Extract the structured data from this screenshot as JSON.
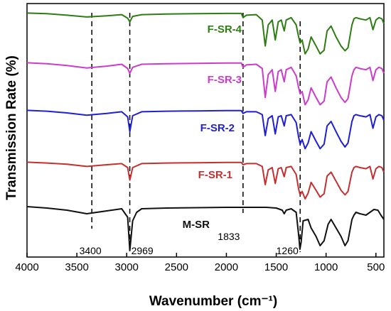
{
  "chart_data": {
    "type": "line",
    "xlabel": "Wavenumber (cm⁻¹)",
    "ylabel": "Transmission Rate (%)",
    "xlim": [
      4000,
      420
    ],
    "x_direction": "reversed",
    "y_ticks_shown": false,
    "grid": false,
    "legend": "inline labels",
    "x_ticks": [
      "4000",
      "3500",
      "3000",
      "2500",
      "2000",
      "1500",
      "1000",
      "500"
    ],
    "x_tick_values": [
      4000,
      3500,
      3000,
      2500,
      2000,
      1500,
      1000,
      500
    ],
    "annotations": [
      {
        "text": "3400",
        "x": 3350
      },
      {
        "text": "2969",
        "x": 2969
      },
      {
        "text": "1833",
        "x": 1833
      },
      {
        "text": "1260",
        "x": 1260
      }
    ],
    "series": [
      {
        "name": "F-SR-4",
        "color": "#2e7d14",
        "points": [
          [
            4000,
            0.5
          ],
          [
            3800,
            1.5
          ],
          [
            3600,
            4
          ],
          [
            3400,
            7
          ],
          [
            3200,
            5
          ],
          [
            3050,
            3
          ],
          [
            2990,
            9
          ],
          [
            2969,
            15
          ],
          [
            2940,
            6
          ],
          [
            2850,
            3
          ],
          [
            2600,
            2
          ],
          [
            2300,
            1.5
          ],
          [
            2000,
            1
          ],
          [
            1850,
            1
          ],
          [
            1833,
            8
          ],
          [
            1800,
            4
          ],
          [
            1700,
            3
          ],
          [
            1640,
            12
          ],
          [
            1610,
            55
          ],
          [
            1580,
            20
          ],
          [
            1540,
            12
          ],
          [
            1510,
            45
          ],
          [
            1480,
            15
          ],
          [
            1450,
            12
          ],
          [
            1420,
            30
          ],
          [
            1400,
            12
          ],
          [
            1350,
            8
          ],
          [
            1300,
            20
          ],
          [
            1275,
            40
          ],
          [
            1260,
            50
          ],
          [
            1240,
            45
          ],
          [
            1210,
            68
          ],
          [
            1180,
            60
          ],
          [
            1150,
            40
          ],
          [
            1100,
            55
          ],
          [
            1060,
            68
          ],
          [
            1020,
            62
          ],
          [
            990,
            30
          ],
          [
            950,
            22
          ],
          [
            900,
            40
          ],
          [
            850,
            55
          ],
          [
            810,
            63
          ],
          [
            780,
            58
          ],
          [
            740,
            20
          ],
          [
            720,
            10
          ],
          [
            700,
            8
          ],
          [
            660,
            10
          ],
          [
            600,
            12
          ],
          [
            560,
            8
          ],
          [
            530,
            28
          ],
          [
            500,
            12
          ],
          [
            470,
            8
          ],
          [
            440,
            10
          ],
          [
            420,
            18
          ]
        ]
      },
      {
        "name": "F-SR-3",
        "color": "#cc3ccc",
        "points": [
          [
            4000,
            0.5
          ],
          [
            3800,
            2
          ],
          [
            3600,
            5
          ],
          [
            3400,
            9
          ],
          [
            3200,
            6
          ],
          [
            3050,
            3
          ],
          [
            2990,
            10
          ],
          [
            2969,
            18
          ],
          [
            2940,
            8
          ],
          [
            2850,
            3
          ],
          [
            2600,
            2
          ],
          [
            2300,
            1.5
          ],
          [
            2000,
            1
          ],
          [
            1850,
            1
          ],
          [
            1833,
            8
          ],
          [
            1800,
            4
          ],
          [
            1700,
            3
          ],
          [
            1640,
            10
          ],
          [
            1610,
            58
          ],
          [
            1580,
            20
          ],
          [
            1540,
            12
          ],
          [
            1510,
            48
          ],
          [
            1480,
            15
          ],
          [
            1450,
            12
          ],
          [
            1420,
            32
          ],
          [
            1400,
            12
          ],
          [
            1350,
            8
          ],
          [
            1300,
            22
          ],
          [
            1275,
            42
          ],
          [
            1260,
            52
          ],
          [
            1240,
            48
          ],
          [
            1210,
            70
          ],
          [
            1180,
            62
          ],
          [
            1150,
            42
          ],
          [
            1100,
            58
          ],
          [
            1060,
            70
          ],
          [
            1020,
            64
          ],
          [
            990,
            32
          ],
          [
            950,
            24
          ],
          [
            900,
            42
          ],
          [
            850,
            58
          ],
          [
            810,
            66
          ],
          [
            780,
            60
          ],
          [
            740,
            22
          ],
          [
            720,
            12
          ],
          [
            700,
            8
          ],
          [
            660,
            10
          ],
          [
            600,
            12
          ],
          [
            560,
            8
          ],
          [
            530,
            30
          ],
          [
            500,
            12
          ],
          [
            470,
            8
          ],
          [
            440,
            10
          ],
          [
            420,
            18
          ]
        ]
      },
      {
        "name": "F-SR-2",
        "color": "#1f1fd8",
        "points": [
          [
            4000,
            0.5
          ],
          [
            3800,
            2
          ],
          [
            3600,
            5
          ],
          [
            3400,
            9
          ],
          [
            3200,
            6
          ],
          [
            3050,
            3
          ],
          [
            2990,
            12
          ],
          [
            2969,
            38
          ],
          [
            2940,
            10
          ],
          [
            2850,
            3
          ],
          [
            2600,
            2
          ],
          [
            2300,
            1.5
          ],
          [
            2000,
            1
          ],
          [
            1850,
            1
          ],
          [
            1833,
            6
          ],
          [
            1800,
            3
          ],
          [
            1700,
            3
          ],
          [
            1640,
            8
          ],
          [
            1610,
            45
          ],
          [
            1580,
            15
          ],
          [
            1540,
            10
          ],
          [
            1510,
            42
          ],
          [
            1480,
            12
          ],
          [
            1450,
            10
          ],
          [
            1420,
            28
          ],
          [
            1400,
            10
          ],
          [
            1350,
            8
          ],
          [
            1300,
            22
          ],
          [
            1275,
            48
          ],
          [
            1260,
            60
          ],
          [
            1240,
            52
          ],
          [
            1210,
            68
          ],
          [
            1180,
            58
          ],
          [
            1150,
            38
          ],
          [
            1100,
            55
          ],
          [
            1060,
            68
          ],
          [
            1020,
            60
          ],
          [
            990,
            28
          ],
          [
            950,
            20
          ],
          [
            900,
            38
          ],
          [
            850,
            55
          ],
          [
            810,
            65
          ],
          [
            780,
            58
          ],
          [
            740,
            20
          ],
          [
            720,
            10
          ],
          [
            700,
            8
          ],
          [
            660,
            10
          ],
          [
            600,
            12
          ],
          [
            560,
            8
          ],
          [
            530,
            32
          ],
          [
            500,
            12
          ],
          [
            470,
            8
          ],
          [
            440,
            10
          ],
          [
            420,
            18
          ]
        ]
      },
      {
        "name": "F-SR-1",
        "color": "#c62f2f",
        "points": [
          [
            4000,
            0.5
          ],
          [
            3800,
            2
          ],
          [
            3600,
            4
          ],
          [
            3400,
            8
          ],
          [
            3200,
            5
          ],
          [
            3050,
            3
          ],
          [
            2990,
            10
          ],
          [
            2969,
            32
          ],
          [
            2940,
            10
          ],
          [
            2850,
            3
          ],
          [
            2600,
            2
          ],
          [
            2300,
            1.5
          ],
          [
            2000,
            1
          ],
          [
            1850,
            1
          ],
          [
            1833,
            5
          ],
          [
            1800,
            3
          ],
          [
            1700,
            3
          ],
          [
            1640,
            8
          ],
          [
            1610,
            40
          ],
          [
            1580,
            14
          ],
          [
            1540,
            10
          ],
          [
            1510,
            38
          ],
          [
            1480,
            12
          ],
          [
            1450,
            10
          ],
          [
            1420,
            26
          ],
          [
            1400,
            10
          ],
          [
            1350,
            8
          ],
          [
            1300,
            22
          ],
          [
            1275,
            48
          ],
          [
            1260,
            58
          ],
          [
            1240,
            52
          ],
          [
            1210,
            65
          ],
          [
            1180,
            55
          ],
          [
            1150,
            36
          ],
          [
            1100,
            50
          ],
          [
            1060,
            62
          ],
          [
            1020,
            56
          ],
          [
            990,
            25
          ],
          [
            950,
            18
          ],
          [
            900,
            34
          ],
          [
            850,
            50
          ],
          [
            810,
            58
          ],
          [
            780,
            52
          ],
          [
            740,
            18
          ],
          [
            720,
            10
          ],
          [
            700,
            8
          ],
          [
            660,
            10
          ],
          [
            600,
            12
          ],
          [
            560,
            8
          ],
          [
            530,
            30
          ],
          [
            500,
            12
          ],
          [
            470,
            8
          ],
          [
            440,
            10
          ],
          [
            420,
            18
          ]
        ]
      },
      {
        "name": "M-SR",
        "color": "#111111",
        "points": [
          [
            4000,
            0
          ],
          [
            3800,
            2
          ],
          [
            3600,
            5
          ],
          [
            3400,
            10
          ],
          [
            3200,
            6
          ],
          [
            3050,
            3
          ],
          [
            2990,
            15
          ],
          [
            2969,
            62
          ],
          [
            2940,
            20
          ],
          [
            2900,
            8
          ],
          [
            2850,
            3
          ],
          [
            2600,
            2
          ],
          [
            2300,
            1.5
          ],
          [
            2000,
            1
          ],
          [
            1850,
            1
          ],
          [
            1833,
            1
          ],
          [
            1700,
            1
          ],
          [
            1600,
            1
          ],
          [
            1500,
            2
          ],
          [
            1440,
            5
          ],
          [
            1420,
            10
          ],
          [
            1400,
            5
          ],
          [
            1350,
            3
          ],
          [
            1300,
            8
          ],
          [
            1275,
            40
          ],
          [
            1262,
            60
          ],
          [
            1250,
            50
          ],
          [
            1230,
            20
          ],
          [
            1180,
            18
          ],
          [
            1150,
            30
          ],
          [
            1100,
            42
          ],
          [
            1060,
            55
          ],
          [
            1020,
            48
          ],
          [
            980,
            25
          ],
          [
            950,
            18
          ],
          [
            900,
            30
          ],
          [
            850,
            42
          ],
          [
            810,
            55
          ],
          [
            780,
            48
          ],
          [
            740,
            18
          ],
          [
            720,
            12
          ],
          [
            700,
            8
          ],
          [
            660,
            10
          ],
          [
            600,
            12
          ],
          [
            560,
            8
          ],
          [
            520,
            4
          ],
          [
            480,
            5
          ],
          [
            450,
            12
          ],
          [
            420,
            18
          ]
        ]
      }
    ]
  }
}
